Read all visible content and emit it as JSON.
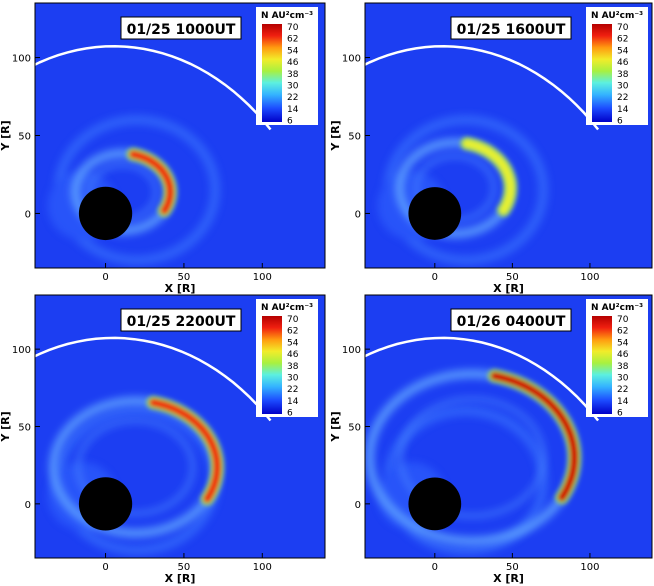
{
  "colorbar": {
    "label": "N AU²cm⁻³",
    "ticks": [
      "70",
      "62",
      "54",
      "46",
      "38",
      "30",
      "22",
      "14",
      "6"
    ],
    "stops": [
      "#0000c8",
      "#1d4cff",
      "#34b4ff",
      "#5cf0e0",
      "#a8f040",
      "#f2ec2a",
      "#ff9a10",
      "#f02010",
      "#b40000"
    ]
  },
  "chart_data": [
    {
      "type": "heatmap",
      "title": "01/25 1000UT",
      "xlabel": "X [R]",
      "ylabel": "Y [R]",
      "xticks": [
        "0",
        "50",
        "100"
      ],
      "yticks": [
        "0",
        "50",
        "100"
      ],
      "xlim": [
        -45,
        140
      ],
      "ylim": [
        -35,
        135
      ],
      "color_range": [
        6,
        70
      ],
      "cme_front_peak_density": 62
    },
    {
      "type": "heatmap",
      "title": "01/25 1600UT",
      "xlabel": "X [R]",
      "ylabel": "Y [R]",
      "xticks": [
        "0",
        "50",
        "100"
      ],
      "yticks": [
        "0",
        "50",
        "100"
      ],
      "xlim": [
        -45,
        140
      ],
      "ylim": [
        -35,
        135
      ],
      "color_range": [
        6,
        70
      ],
      "cme_front_peak_density": 46
    },
    {
      "type": "heatmap",
      "title": "01/25 2200UT",
      "xlabel": "X [R]",
      "ylabel": "Y [R]",
      "xticks": [
        "0",
        "50",
        "100"
      ],
      "yticks": [
        "0",
        "50",
        "100"
      ],
      "xlim": [
        -45,
        140
      ],
      "ylim": [
        -35,
        135
      ],
      "color_range": [
        6,
        70
      ],
      "cme_front_peak_density": 62
    },
    {
      "type": "heatmap",
      "title": "01/26 0400UT",
      "xlabel": "X [R]",
      "ylabel": "Y [R]",
      "xticks": [
        "0",
        "50",
        "100"
      ],
      "yticks": [
        "0",
        "50",
        "100"
      ],
      "xlim": [
        -45,
        140
      ],
      "ylim": [
        -35,
        135
      ],
      "color_range": [
        6,
        70
      ],
      "cme_front_peak_density": 70
    }
  ]
}
